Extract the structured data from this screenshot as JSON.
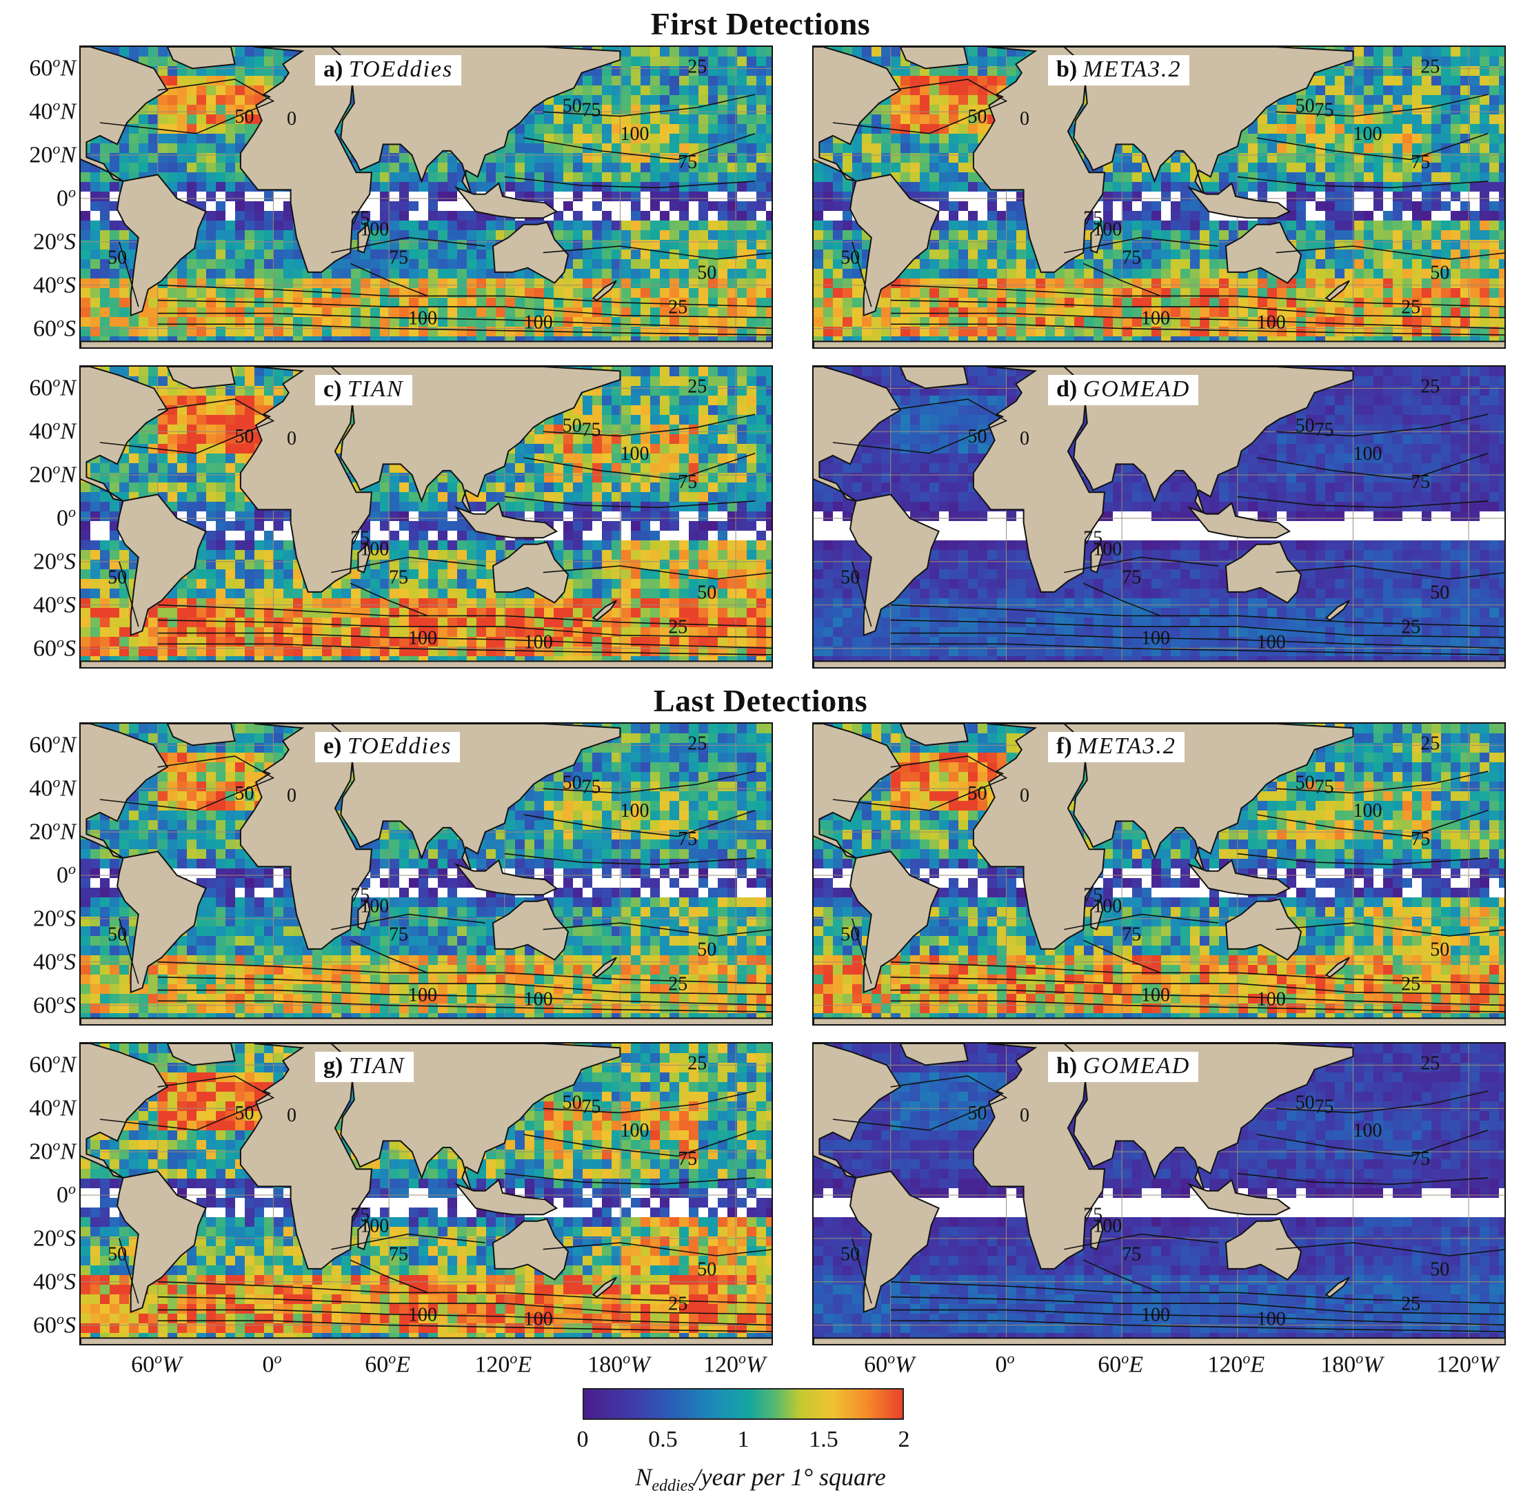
{
  "sections": {
    "first": "First Detections",
    "last": "Last Detections"
  },
  "panels": [
    {
      "letter": "a)",
      "name": "TOEddies",
      "intensity": 1.0
    },
    {
      "letter": "b)",
      "name": "META3.2",
      "intensity": 1.1
    },
    {
      "letter": "c)",
      "name": "TIAN",
      "intensity": 1.2
    },
    {
      "letter": "d)",
      "name": "GOMEAD",
      "intensity": 0.35
    },
    {
      "letter": "e)",
      "name": "TOEddies",
      "intensity": 1.0
    },
    {
      "letter": "f)",
      "name": "META3.2",
      "intensity": 1.1
    },
    {
      "letter": "g)",
      "name": "TIAN",
      "intensity": 1.2
    },
    {
      "letter": "h)",
      "name": "GOMEAD",
      "intensity": 0.35
    }
  ],
  "axes": {
    "y_ticks": [
      "60oN",
      "40oN",
      "20oN",
      "0o",
      "20oS",
      "40oS",
      "60oS"
    ],
    "y_ticks_display": [
      {
        "deg": "60",
        "hemi": "N"
      },
      {
        "deg": "40",
        "hemi": "N"
      },
      {
        "deg": "20",
        "hemi": "N"
      },
      {
        "deg": "0",
        "hemi": ""
      },
      {
        "deg": "20",
        "hemi": "S"
      },
      {
        "deg": "40",
        "hemi": "S"
      },
      {
        "deg": "60",
        "hemi": "S"
      }
    ],
    "x_ticks_display": [
      {
        "deg": "60",
        "hemi": "W"
      },
      {
        "deg": "0",
        "hemi": ""
      },
      {
        "deg": "60",
        "hemi": "E"
      },
      {
        "deg": "120",
        "hemi": "E"
      },
      {
        "deg": "180",
        "hemi": "W"
      },
      {
        "deg": "120",
        "hemi": "W"
      }
    ]
  },
  "contour_labels": [
    "25",
    "50",
    "75",
    "100"
  ],
  "colorbar": {
    "ticks": [
      "0",
      "0.5",
      "1",
      "1.5",
      "2"
    ],
    "label_main": "N",
    "label_sub": "eddies",
    "label_rest": "/year per 1° square",
    "range": [
      0,
      2
    ],
    "colors": [
      "#4a1e8c",
      "#2a5fb8",
      "#16a6a0",
      "#c5c930",
      "#f48a2a",
      "#e8432a"
    ]
  },
  "chart_data": {
    "type": "heatmap",
    "title": "",
    "colorbar_label": "Neddies/year per 1° square",
    "colorbar_range": [
      0,
      2
    ],
    "x_ticks": [
      "60oW",
      "0o",
      "60oE",
      "120oE",
      "180oW",
      "120oW"
    ],
    "y_ticks": [
      "60oN",
      "40oN",
      "20oN",
      "0o",
      "20oS",
      "40oS",
      "60oS"
    ],
    "sections": [
      "First Detections",
      "Last Detections"
    ],
    "panels": [
      "a) TOEddies",
      "b) META3.2",
      "c) TIAN",
      "d) GOMEAD",
      "e) TOEddies",
      "f) META3.2",
      "g) TIAN",
      "h) GOMEAD"
    ],
    "contour_levels": [
      25,
      50,
      75,
      100
    ]
  }
}
